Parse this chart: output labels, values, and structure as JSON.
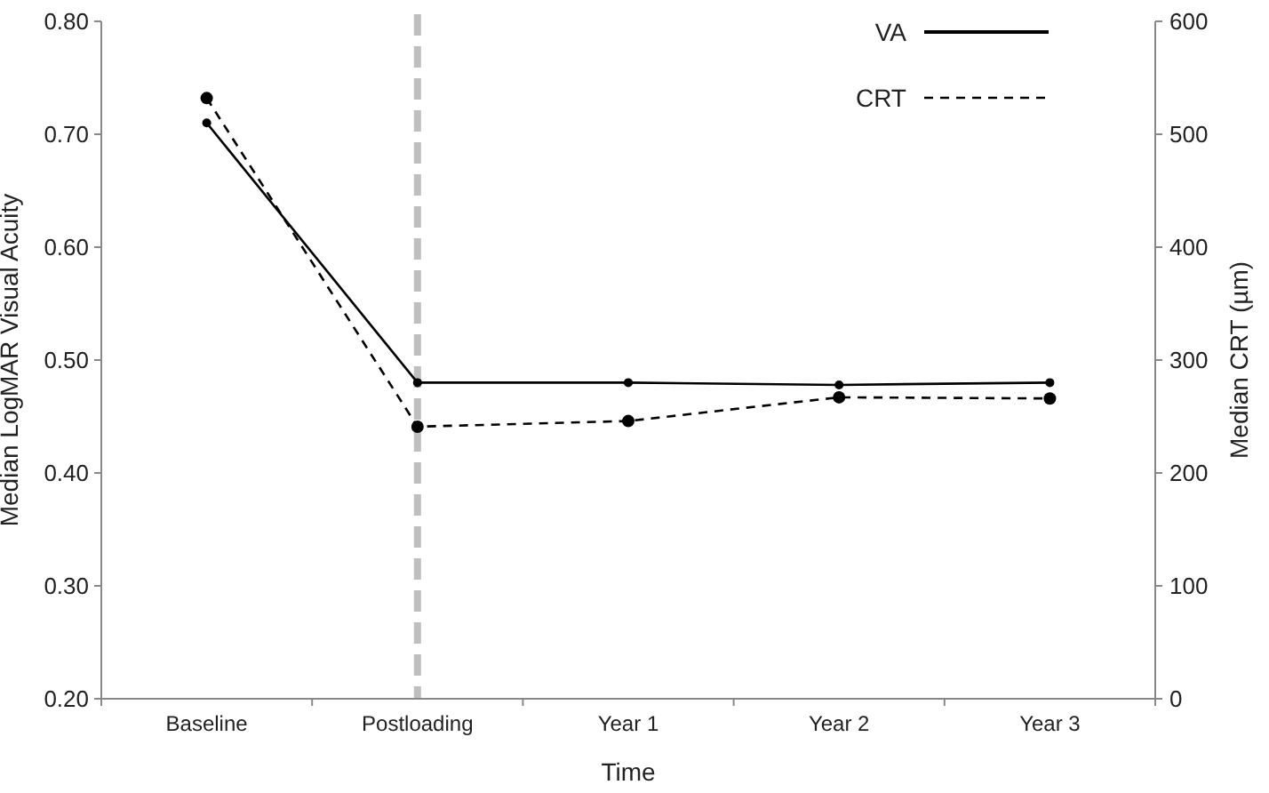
{
  "chart_data": {
    "type": "line",
    "xlabel": "Time",
    "ylabel": "Median LogMAR Visual Acuity",
    "y2label": "Median CRT (µm)",
    "categories": [
      "Baseline",
      "Postloading",
      "Year 1",
      "Year 2",
      "Year 3"
    ],
    "series": [
      {
        "name": "VA",
        "color": "#000000",
        "values": [
          0.71,
          0.48,
          0.48,
          0.478,
          0.48
        ],
        "line_style": "solid"
      },
      {
        "name": "CRT",
        "color": "#000000",
        "values": [
          532,
          241,
          246,
          267,
          266
        ],
        "axis": "y2",
        "line_style": "dashed"
      }
    ],
    "ylim": [
      0.2,
      0.8
    ],
    "yticks": [
      {
        "value": 0.2,
        "label": "0.20"
      },
      {
        "value": 0.3,
        "label": "0.30"
      },
      {
        "value": 0.4,
        "label": "0.40"
      },
      {
        "value": 0.5,
        "label": "0.50"
      },
      {
        "value": 0.6,
        "label": "0.60"
      },
      {
        "value": 0.7,
        "label": "0.70"
      },
      {
        "value": 0.8,
        "label": "0.80"
      }
    ],
    "y2lim": [
      0,
      600
    ],
    "y2ticks": [
      0,
      100,
      200,
      300,
      400,
      500,
      600
    ],
    "ref_lines": [
      {
        "axis": "x",
        "value": "Postloading",
        "color": "#bfbfbf",
        "line_style": "dashed"
      }
    ],
    "marker": "circle",
    "legend": "top right",
    "grid": false
  }
}
